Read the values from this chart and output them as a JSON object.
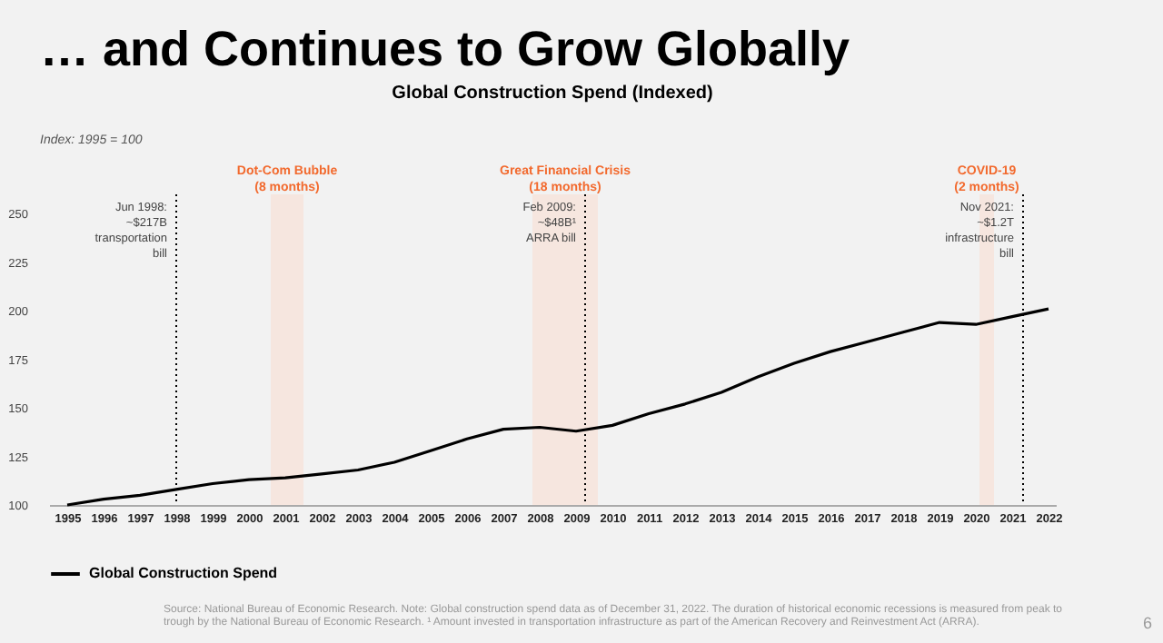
{
  "chart_data": {
    "type": "line",
    "title": "… and Continues to Grow Globally",
    "subtitle": "Global Construction Spend (Indexed)",
    "annotations": [
      "Index: 1995 = 100",
      "Source: National Bureau of Economic Research. Note: Global construction spend data as of December 31, 2022. The duration of historical economic recessions is measured from peak to trough by the National Bureau of Economic Research. ¹ Amount invested in transportation infrastructure as part of the American Recovery and Reinvestment Act (ARRA).",
      "6"
    ],
    "x": [
      1995,
      1996,
      1997,
      1998,
      1999,
      2000,
      2001,
      2002,
      2003,
      2004,
      2005,
      2006,
      2007,
      2008,
      2009,
      2010,
      2011,
      2012,
      2013,
      2014,
      2015,
      2016,
      2017,
      2018,
      2019,
      2020,
      2021,
      2022
    ],
    "series": [
      {
        "name": "Global Construction Spend",
        "color": "#000000",
        "values": [
          100,
          103,
          105,
          108,
          111,
          113,
          114,
          116,
          118,
          122,
          128,
          134,
          139,
          140,
          138,
          141,
          147,
          152,
          158,
          166,
          173,
          179,
          184,
          189,
          194,
          193,
          197,
          201
        ]
      }
    ],
    "xlim": [
      1994.5,
      2022.2
    ],
    "ylim": [
      100,
      260
    ],
    "xticks": [
      1995,
      1996,
      1997,
      1998,
      1999,
      2000,
      2001,
      2002,
      2003,
      2004,
      2005,
      2006,
      2007,
      2008,
      2009,
      2010,
      2011,
      2012,
      2013,
      2014,
      2015,
      2016,
      2017,
      2018,
      2019,
      2020,
      2021,
      2022
    ],
    "yticks": [
      100,
      125,
      150,
      175,
      200,
      225,
      250
    ],
    "bands": [
      {
        "axis": "x",
        "from": 2000.6,
        "to": 2001.5,
        "label": "Dot-Com Bubble\n(8 months)",
        "color": "#f6e6df"
      },
      {
        "axis": "x",
        "from": 2007.8,
        "to": 2009.6,
        "label": "Great Financial Crisis\n(18 months)",
        "color": "#f6e6df"
      },
      {
        "axis": "x",
        "from": 2020.1,
        "to": 2020.5,
        "label": "COVID-19\n(2 months)",
        "color": "#f6e6df"
      }
    ],
    "ref_lines": [
      {
        "axis": "x",
        "value": 1998,
        "label": "Jun 1998:\n~$217B\ntransportation\nbill",
        "color": "#000000",
        "line_style": "dotted"
      },
      {
        "axis": "x",
        "value": 2009.25,
        "label": "Feb 2009:\n~$48B¹\nARRA bill",
        "color": "#000000",
        "line_style": "dotted"
      },
      {
        "axis": "x",
        "value": 2021.3,
        "label": "Nov 2021:\n~$1.2T\ninfrastructure\nbill",
        "color": "#000000",
        "line_style": "dotted"
      }
    ],
    "legend": "bottom"
  }
}
